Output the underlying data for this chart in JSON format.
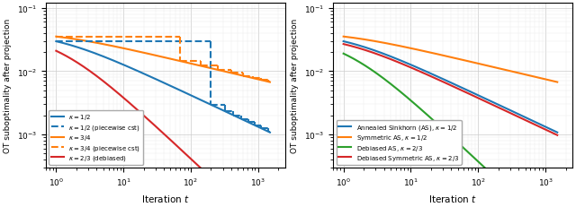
{
  "fig_width": 6.4,
  "fig_height": 2.32,
  "dpi": 100,
  "background_color": "#ffffff",
  "left_plot": {
    "ylabel": "OT suboptimality after projection",
    "xlabel": "Iteration $t$",
    "xlim": [
      0.7,
      2500
    ],
    "ylim": [
      0.0003,
      0.12
    ],
    "legend_loc": "lower left",
    "lines": [
      {
        "label": "$\\kappa = 1/2$",
        "color": "#1f77b4",
        "linestyle": "solid",
        "lw": 1.5,
        "alpha_exp": 0.5,
        "C": 0.042,
        "piecewise": false
      },
      {
        "label": "$\\kappa = 1/2$ (piecewise cst)",
        "color": "#1f77b4",
        "linestyle": "dashed",
        "lw": 1.5,
        "piecewise": true,
        "pw_kappa": 0.5,
        "pw_C": 0.042,
        "pw_period_base": 2.0,
        "pw_num_periods": 5
      },
      {
        "label": "$\\kappa = 3/4$",
        "color": "#ff7f0e",
        "linestyle": "solid",
        "lw": 1.5,
        "alpha_exp": 0.25,
        "C": 0.042,
        "piecewise": false
      },
      {
        "label": "$\\kappa = 3/4$ (piecewise cst)",
        "color": "#ff7f0e",
        "linestyle": "dashed",
        "lw": 1.5,
        "piecewise": true,
        "pw_kappa": 0.25,
        "pw_C": 0.042,
        "pw_period_base": 2.0,
        "pw_num_periods": 5
      },
      {
        "label": "$\\kappa = 2/3$ (debiased)",
        "color": "#d62728",
        "linestyle": "solid",
        "lw": 1.5,
        "alpha_exp": 1.0,
        "C": 0.042,
        "piecewise": false
      }
    ]
  },
  "right_plot": {
    "ylabel": "OT suboptimality after projection",
    "xlabel": "Iteration $t$",
    "xlim": [
      0.7,
      2500
    ],
    "ylim": [
      0.0003,
      0.12
    ],
    "legend_loc": "lower left",
    "lines": [
      {
        "label": "Annealed Sinkhorn (AS), $\\kappa = 1/2$",
        "color": "#1f77b4",
        "linestyle": "solid",
        "lw": 1.5,
        "alpha_exp": 0.5,
        "C": 0.042,
        "piecewise": false
      },
      {
        "label": "Symmetric AS, $\\kappa = 1/2$",
        "color": "#ff7f0e",
        "linestyle": "solid",
        "lw": 1.5,
        "alpha_exp": 0.25,
        "C": 0.042,
        "piecewise": false
      },
      {
        "label": "Debiased AS, $\\kappa = 2/3$",
        "color": "#2ca02c",
        "linestyle": "solid",
        "lw": 1.5,
        "alpha_exp": 1.0,
        "C": 0.038,
        "piecewise": false
      },
      {
        "label": "Debiased Symmetric AS, $\\kappa = 2/3$",
        "color": "#d62728",
        "linestyle": "solid",
        "lw": 1.5,
        "alpha_exp": 0.5,
        "C": 0.038,
        "piecewise": false
      }
    ]
  }
}
